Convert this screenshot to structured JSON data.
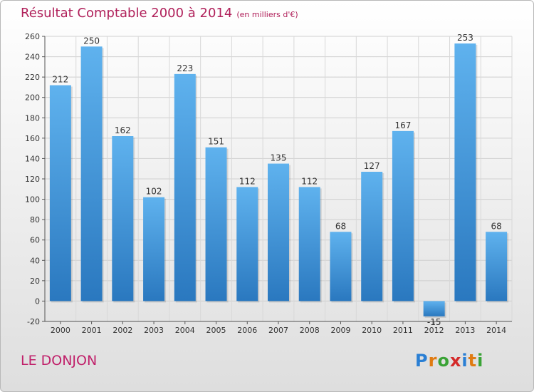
{
  "chart_data": {
    "type": "bar",
    "title": "Résultat Comptable 2000 à 2014",
    "subtitle": "(en milliers d'€)",
    "categories": [
      "2000",
      "2001",
      "2002",
      "2003",
      "2004",
      "2005",
      "2006",
      "2007",
      "2008",
      "2009",
      "2010",
      "2011",
      "2012",
      "2013",
      "2014"
    ],
    "values": [
      212,
      250,
      162,
      102,
      223,
      151,
      112,
      135,
      112,
      68,
      127,
      167,
      -15,
      253,
      68
    ],
    "ylim": [
      -20,
      260
    ],
    "yticks": [
      -20,
      0,
      20,
      40,
      60,
      80,
      100,
      120,
      140,
      160,
      180,
      200,
      220,
      240,
      260
    ],
    "grid": true,
    "bar_color": "#4a9fe0"
  },
  "footer": {
    "place_name": "LE DONJON"
  },
  "logo": {
    "letters": [
      "P",
      "r",
      "o",
      "x",
      "i",
      "t",
      "i"
    ],
    "colors": [
      "#2a7fd4",
      "#e07b12",
      "#3aa336",
      "#d42a2a",
      "#2a7fd4",
      "#e07b12",
      "#3aa336"
    ]
  }
}
